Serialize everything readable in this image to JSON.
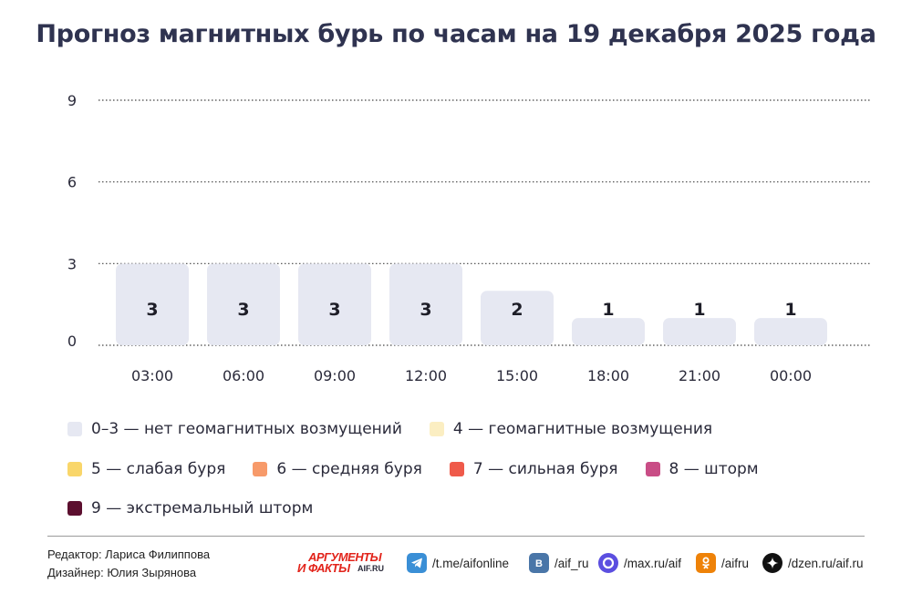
{
  "chart_data": {
    "type": "bar",
    "title": "Прогноз магнитных бурь по часам на 19 декабря 2025 года",
    "categories": [
      "03:00",
      "06:00",
      "09:00",
      "12:00",
      "15:00",
      "18:00",
      "21:00",
      "00:00"
    ],
    "values": [
      3,
      3,
      3,
      3,
      2,
      1,
      1,
      1
    ],
    "data_labels": [
      "3",
      "3",
      "3",
      "3",
      "2",
      "1",
      "1",
      "1"
    ],
    "yticks": [
      0,
      3,
      6,
      9
    ],
    "ylim": [
      0,
      9
    ],
    "grid": "dotted horizontal",
    "bar_color": "#e6e8f2",
    "legend": [
      {
        "label": "0–3 — нет геомагнитных возмущений",
        "color": "#e6e8f2",
        "row": 0
      },
      {
        "label": "4 — геомагнитные возмущения",
        "color": "#fbeec2",
        "row": 0
      },
      {
        "label": "5 — слабая буря",
        "color": "#f9d66a",
        "row": 1
      },
      {
        "label": "6 — средняя буря",
        "color": "#f79a6a",
        "row": 1
      },
      {
        "label": "7 — сильная буря",
        "color": "#ef5a4a",
        "row": 1
      },
      {
        "label": "8 — шторм",
        "color": "#c94d86",
        "row": 1
      },
      {
        "label": "9 — экстремальный шторм",
        "color": "#5c0f2f",
        "row": 2
      }
    ],
    "legend_placement": "bottom"
  },
  "footer": {
    "editor": "Редактор: Лариса Филиппова",
    "designer": "Дизайнер: Юлия Зырянова",
    "logo_top": "АРГУМЕНТЫ",
    "logo_bottom": "И ФАКТЫ",
    "logo_site": "AIF.RU",
    "links": [
      {
        "icon": "telegram-icon",
        "text": "/t.me/aifonline",
        "color": "#3a8fd6"
      },
      {
        "icon": "vk-icon",
        "text": "/aif_ru",
        "color": "#4a76a8"
      },
      {
        "icon": "max-icon",
        "text": "/max.ru/aif",
        "color": "#5b4ee0"
      },
      {
        "icon": "odnoklassniki-icon",
        "text": "/aifru",
        "color": "#ee8208"
      },
      {
        "icon": "dzen-icon",
        "text": "/dzen.ru/aif.ru",
        "color": "#111111"
      }
    ]
  }
}
